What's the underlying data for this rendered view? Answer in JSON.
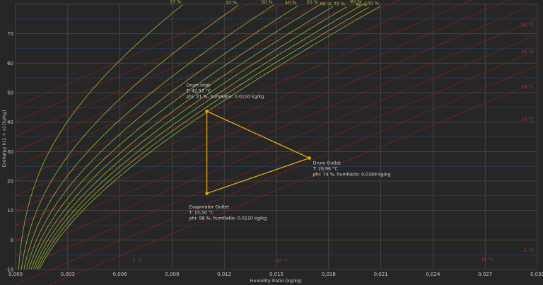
{
  "chart_data": {
    "type": "line",
    "title": "",
    "xlabel": "Humidity Ratio [kg/kg]",
    "ylabel": "Enthalpy h(1 + x) [kJ/kg]",
    "xlim": [
      0.0,
      0.03
    ],
    "ylim": [
      -10,
      80
    ],
    "x_ticks": [
      "0,000",
      "0,003",
      "0,006",
      "0,009",
      "0,012",
      "0,015",
      "0,018",
      "0,021",
      "0,024",
      "0,027",
      "0,030"
    ],
    "y_ticks": [
      "-10",
      "0",
      "10",
      "20",
      "30",
      "40",
      "50",
      "60",
      "70"
    ],
    "colors": {
      "background": "#262626",
      "grid": "#4a4a4a",
      "isotherm": "#8a2020",
      "minor_line": "#2a4a8a",
      "rh_curve": "#9ab83a",
      "process": "#e6a817"
    },
    "relative_humidity_curves": [
      {
        "phi": 10,
        "label": "10 %"
      },
      {
        "phi": 20,
        "label": "20 %"
      },
      {
        "phi": 30,
        "label": "30 %"
      },
      {
        "phi": 40,
        "label": "40 %"
      },
      {
        "phi": 50,
        "label": "50 %"
      },
      {
        "phi": 60,
        "label": "60 %"
      },
      {
        "phi": 70,
        "label": "70 %"
      },
      {
        "phi": 80,
        "label": "80 %"
      },
      {
        "phi": 90,
        "label": "90 %"
      },
      {
        "phi": 100,
        "label": "100 %"
      }
    ],
    "rh_label_list": [
      "10 %",
      "20 %",
      "30 %",
      "40 %",
      "50 %",
      "60 %",
      "70 %",
      "80 %",
      "90 %",
      "100 %"
    ],
    "isotherm_labels": [
      {
        "text": "25 °C",
        "x": 0.0298,
        "y": 72.5
      },
      {
        "text": "20 °C",
        "x": 0.0298,
        "y": 63.5
      },
      {
        "text": "15 °C",
        "x": 0.0298,
        "y": 51.5
      },
      {
        "text": "10 °C",
        "x": 0.0298,
        "y": 40.5
      },
      {
        "text": "5 °C",
        "x": 0.0298,
        "y": -4.0
      },
      {
        "text": "-5 °C",
        "x": 0.0073,
        "y": -7.5
      },
      {
        "text": "-10 °C",
        "x": 0.0157,
        "y": -7.5
      },
      {
        "text": "-15 °C",
        "x": 0.0275,
        "y": -7.0
      }
    ],
    "process_points": [
      {
        "name": "Drum Inlet",
        "x": 0.011,
        "y": 43.7,
        "temp": "T: 42,57 °C",
        "detail": "phi: 21 %, humRatio: 0,0110 kg/kg"
      },
      {
        "name": "Drum Outlet",
        "x": 0.0169,
        "y": 27.8,
        "temp": "T: 26,96 °C",
        "detail": "phi: 74 %, humRatio: 0,0169 kg/kg"
      },
      {
        "name": "Evaporator Outlet",
        "x": 0.011,
        "y": 15.8,
        "temp": "T: 15,50 °C",
        "detail": "phi: 98 %, humRatio: 0,0110 kg/kg"
      }
    ]
  }
}
